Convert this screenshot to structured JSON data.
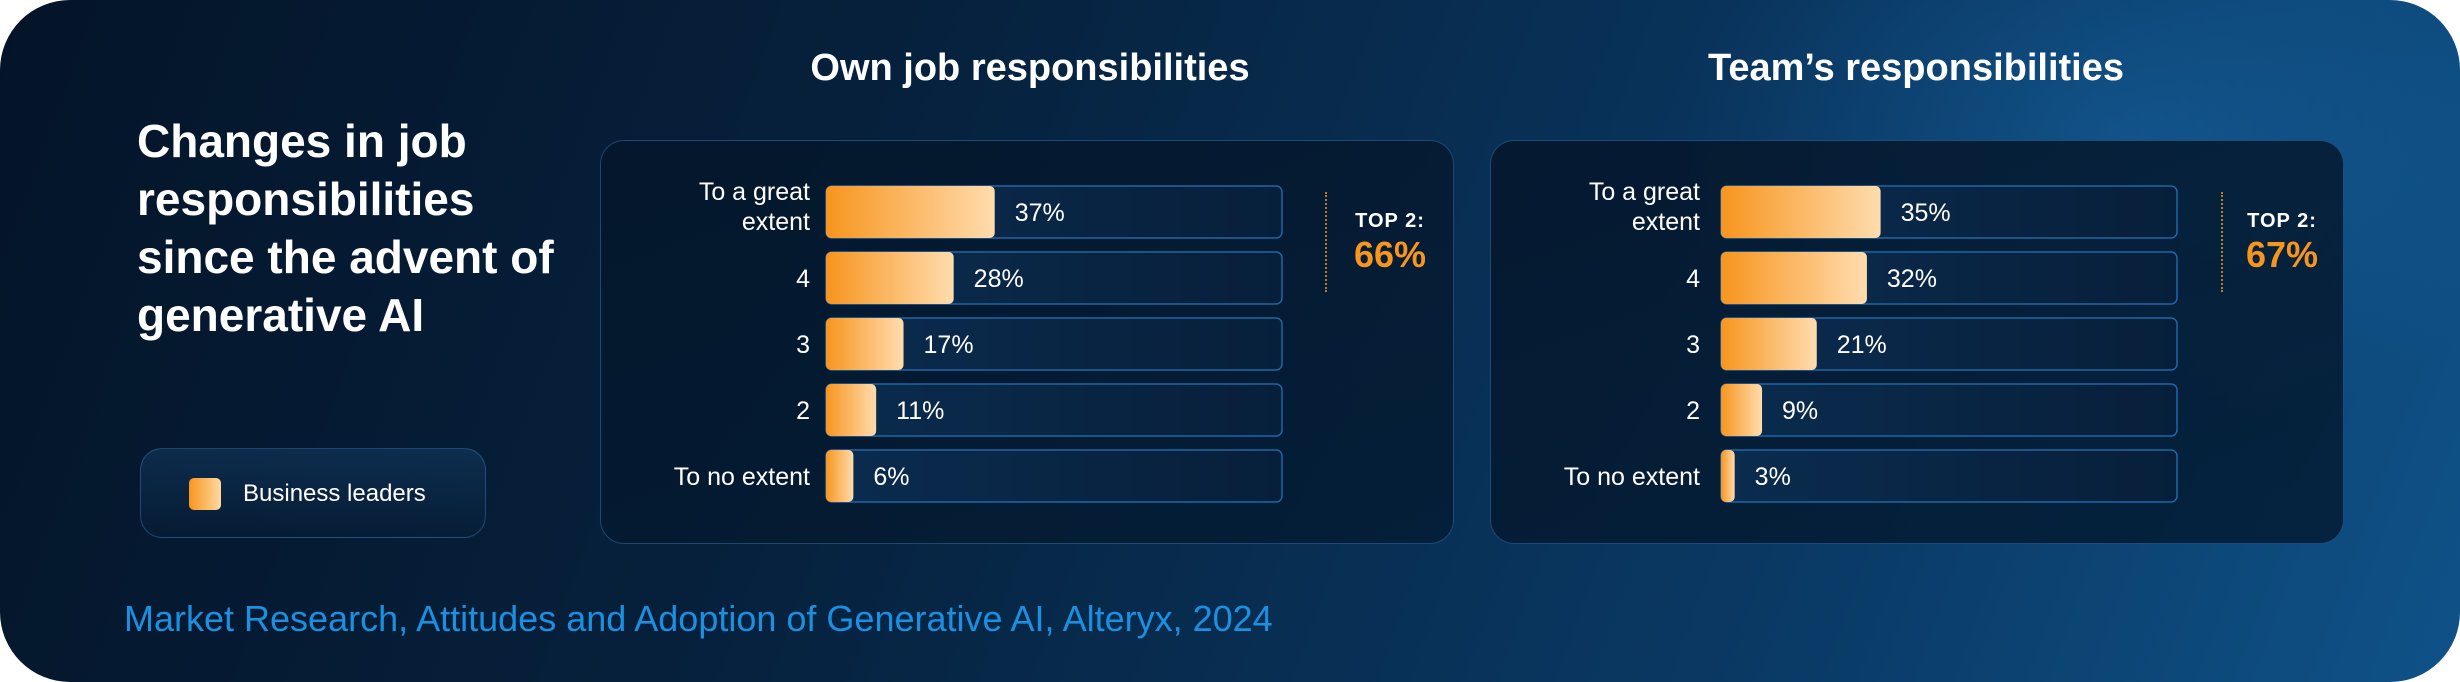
{
  "title": "Changes in job responsibilities since the advent of generative AI",
  "legend": {
    "label": "Business leaders"
  },
  "source": "Market Research, Attitudes and Adoption of Generative AI, Alteryx, 2024",
  "colors": {
    "bar_start": "#f7951e",
    "bar_end": "#ffdcae",
    "accent": "#f7951e",
    "source": "#1b8fe0"
  },
  "chart_data": [
    {
      "type": "bar",
      "title": "Own job responsibilities",
      "categories": [
        "To a great extent",
        "4",
        "3",
        "2",
        "To no extent"
      ],
      "series": [
        {
          "name": "Business leaders",
          "values": [
            37,
            28,
            17,
            11,
            6
          ]
        }
      ],
      "value_labels": [
        "37%",
        "28%",
        "17%",
        "11%",
        "6%"
      ],
      "xlim": [
        0,
        100
      ],
      "top2": {
        "label": "TOP 2:",
        "value": "66%"
      }
    },
    {
      "type": "bar",
      "title": "Team’s responsibilities",
      "categories": [
        "To a great extent",
        "4",
        "3",
        "2",
        "To no extent"
      ],
      "series": [
        {
          "name": "Business leaders",
          "values": [
            35,
            32,
            21,
            9,
            3
          ]
        }
      ],
      "value_labels": [
        "35%",
        "32%",
        "21%",
        "9%",
        "3%"
      ],
      "xlim": [
        0,
        100
      ],
      "top2": {
        "label": "TOP 2:",
        "value": "67%"
      }
    }
  ]
}
